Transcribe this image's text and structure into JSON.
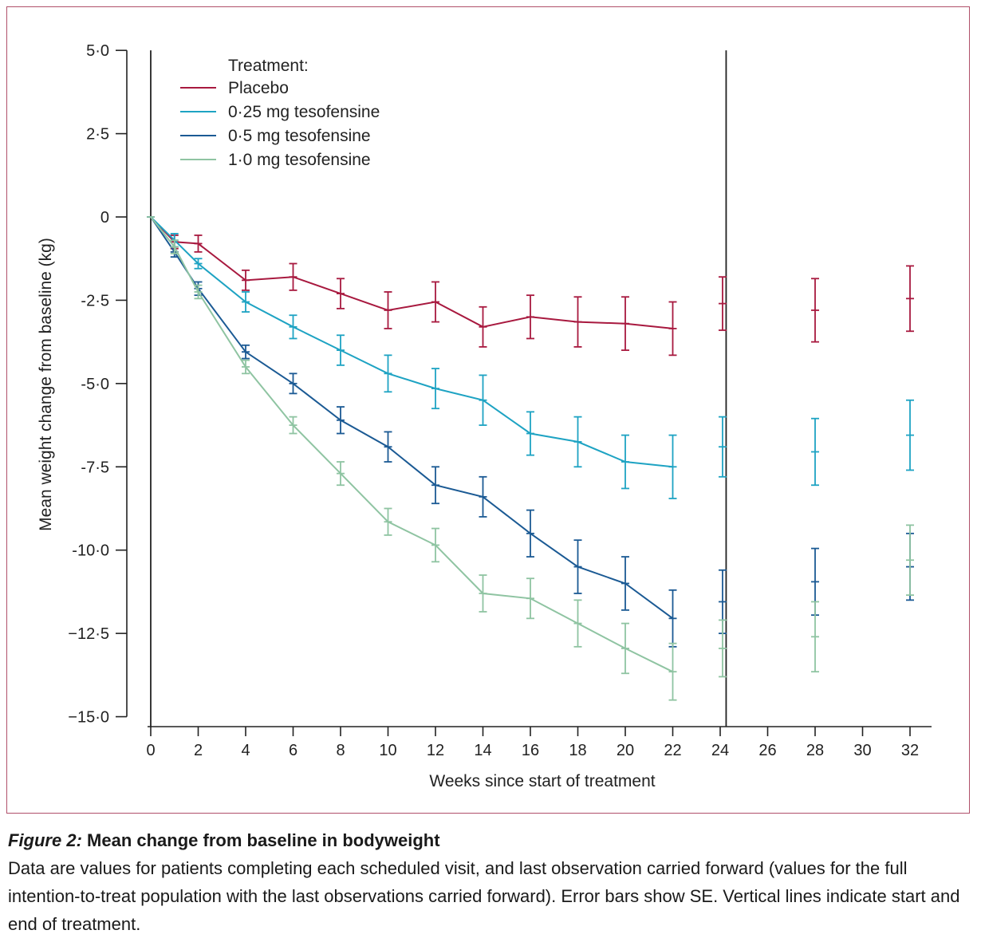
{
  "chart_data": {
    "type": "line",
    "xlabel": "Weeks since start of treatment",
    "ylabel": "Mean weight change from baseline (kg)",
    "xlim": [
      0,
      33
    ],
    "ylim": [
      -15,
      5
    ],
    "xticks": [
      0,
      2,
      4,
      6,
      8,
      10,
      12,
      14,
      16,
      18,
      20,
      22,
      24,
      26,
      28,
      30,
      32
    ],
    "xtick_labels": [
      "0",
      "2",
      "4",
      "6",
      "8",
      "10",
      "12",
      "14",
      "16",
      "18",
      "20",
      "22",
      "24",
      "26",
      "28",
      "30",
      "32"
    ],
    "yticks": [
      5,
      2.5,
      0,
      -2.5,
      -5,
      -7.5,
      -10,
      -12.5,
      -15
    ],
    "ytick_labels": [
      "5·0",
      "2·5",
      "0",
      "-2·5",
      "-5·0",
      "-7·5",
      "-10·0",
      "−12·5",
      "−15·0"
    ],
    "vertical_lines": [
      0,
      24.25
    ],
    "legend": {
      "title": "Treatment:",
      "placement": "top-left"
    },
    "series": [
      {
        "name": "Placebo",
        "color": "#a8193f",
        "x": [
          0,
          1,
          2,
          4,
          6,
          8,
          10,
          12,
          14,
          16,
          18,
          20,
          22
        ],
        "y": [
          0,
          -0.75,
          -0.8,
          -1.9,
          -1.8,
          -2.3,
          -2.8,
          -2.55,
          -3.3,
          -3.0,
          -3.15,
          -3.2,
          -3.35
        ],
        "se": [
          0,
          0.2,
          0.25,
          0.3,
          0.4,
          0.45,
          0.55,
          0.6,
          0.6,
          0.65,
          0.75,
          0.8,
          0.8
        ],
        "post": [
          {
            "x": 24.1,
            "y": -2.6,
            "se": 0.8
          },
          {
            "x": 28,
            "y": -2.8,
            "se": 0.95
          },
          {
            "x": 32,
            "y": -2.45,
            "se": 0.98
          }
        ]
      },
      {
        "name": "0·25 mg tesofensine",
        "color": "#1ea3c3",
        "x": [
          0,
          1,
          2,
          4,
          6,
          8,
          10,
          12,
          14,
          16,
          18,
          20,
          22
        ],
        "y": [
          0,
          -0.7,
          -1.4,
          -2.55,
          -3.3,
          -4.0,
          -4.7,
          -5.15,
          -5.5,
          -6.5,
          -6.75,
          -7.35,
          -7.5
        ],
        "se": [
          0,
          0.2,
          0.15,
          0.3,
          0.35,
          0.45,
          0.55,
          0.6,
          0.75,
          0.65,
          0.75,
          0.8,
          0.95
        ],
        "post": [
          {
            "x": 24.1,
            "y": -6.9,
            "se": 0.9
          },
          {
            "x": 28,
            "y": -7.05,
            "se": 1.0
          },
          {
            "x": 32,
            "y": -6.55,
            "se": 1.05
          }
        ]
      },
      {
        "name": "0·5 mg tesofensine",
        "color": "#1b5a94",
        "x": [
          0,
          1,
          2,
          4,
          6,
          8,
          10,
          12,
          14,
          16,
          18,
          20,
          22
        ],
        "y": [
          0,
          -1.05,
          -2.15,
          -4.05,
          -5.0,
          -6.1,
          -6.9,
          -8.05,
          -8.4,
          -9.5,
          -10.5,
          -11.0,
          -12.05
        ],
        "se": [
          0,
          0.15,
          0.2,
          0.2,
          0.3,
          0.4,
          0.45,
          0.55,
          0.6,
          0.7,
          0.8,
          0.8,
          0.85
        ],
        "post": [
          {
            "x": 24.1,
            "y": -11.55,
            "se": 0.95
          },
          {
            "x": 28,
            "y": -10.95,
            "se": 1.0
          },
          {
            "x": 32,
            "y": -10.5,
            "se": 1.0
          }
        ]
      },
      {
        "name": "1·0 mg tesofensine",
        "color": "#8fc4a2",
        "x": [
          0,
          1,
          2,
          4,
          6,
          8,
          10,
          12,
          14,
          16,
          18,
          20,
          22
        ],
        "y": [
          0,
          -0.9,
          -2.25,
          -4.5,
          -6.25,
          -7.7,
          -9.15,
          -9.85,
          -11.3,
          -11.45,
          -12.2,
          -12.95,
          -13.65
        ],
        "se": [
          0,
          0.2,
          0.2,
          0.2,
          0.25,
          0.35,
          0.4,
          0.5,
          0.55,
          0.6,
          0.7,
          0.75,
          0.85
        ],
        "post": [
          {
            "x": 24.1,
            "y": -12.95,
            "se": 0.85
          },
          {
            "x": 28,
            "y": -12.6,
            "se": 1.05
          },
          {
            "x": 32,
            "y": -10.3,
            "se": 1.05
          }
        ]
      }
    ]
  },
  "caption": {
    "label": "Figure 2:",
    "title": "Mean change from baseline in bodyweight",
    "text": "Data are values for patients completing each scheduled visit, and last observation carried forward (values for the full intention-to-treat population with the last observations carried forward). Error bars show SE. Vertical lines indicate start and end of treatment."
  }
}
